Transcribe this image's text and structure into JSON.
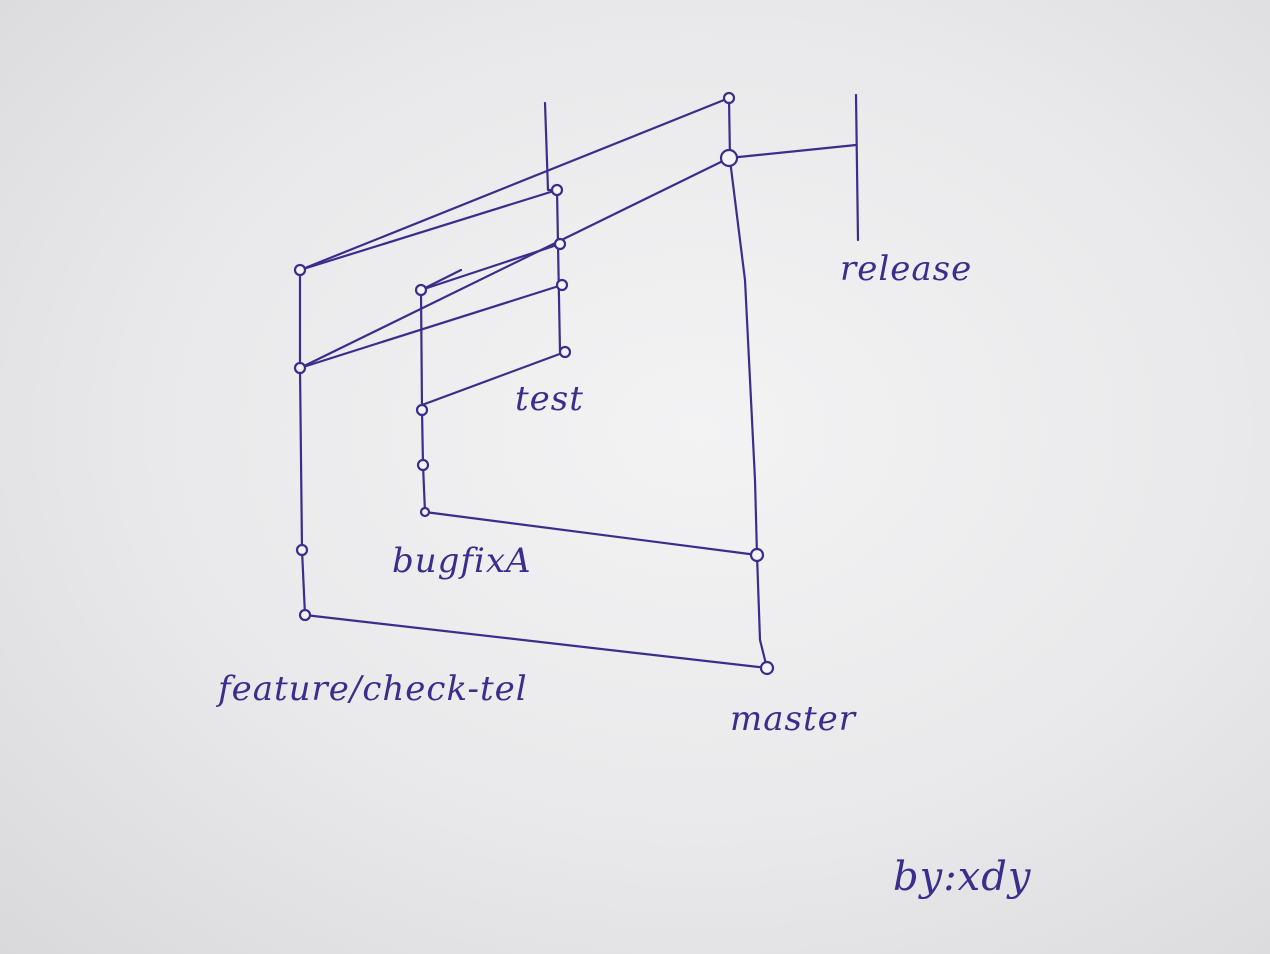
{
  "diagram": {
    "branches": {
      "release": "release",
      "test": "test",
      "bugfix": "bugfixA",
      "feature": "feature/check-tel",
      "master": "master"
    },
    "signature": "by:xdy"
  },
  "colors": {
    "ink": "#3a2e8c",
    "paper": "#eeeef0"
  }
}
